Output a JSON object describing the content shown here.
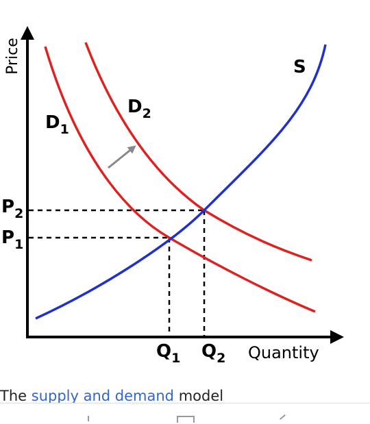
{
  "diagram": {
    "axis_y": "Price",
    "axis_x": "Quantity",
    "supply": "S",
    "demand1": {
      "main": "D",
      "sub": "1"
    },
    "demand2": {
      "main": "D",
      "sub": "2"
    },
    "price1": {
      "main": "P",
      "sub": "1"
    },
    "price2": {
      "main": "P",
      "sub": "2"
    },
    "quantity1": {
      "main": "Q",
      "sub": "1"
    },
    "quantity2": {
      "main": "Q",
      "sub": "2"
    }
  },
  "caption": {
    "prefix": "The",
    "link": "supply and demand",
    "suffix": "model"
  }
}
